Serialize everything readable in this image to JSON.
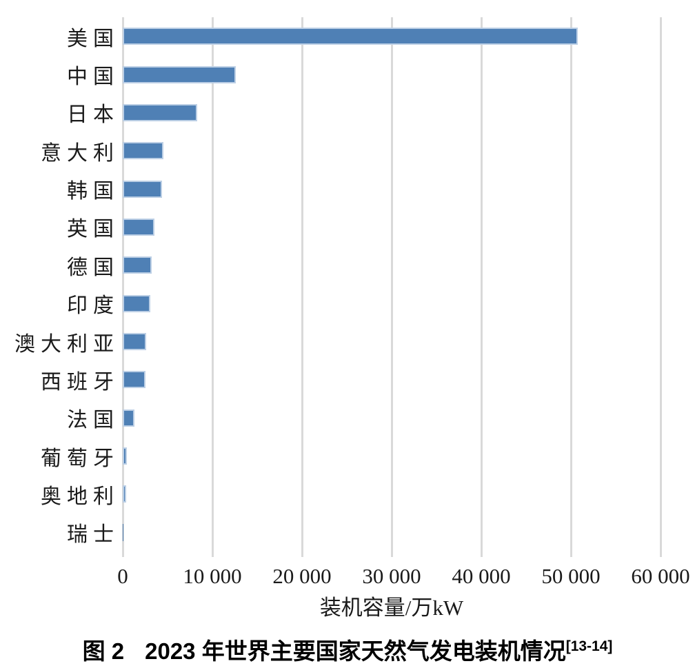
{
  "chart_data": {
    "type": "bar",
    "orientation": "horizontal",
    "categories": [
      "美国",
      "中国",
      "日本",
      "意大利",
      "韩国",
      "英国",
      "德国",
      "印度",
      "澳大利亚",
      "西班牙",
      "法国",
      "葡萄牙",
      "奥地利",
      "瑞士"
    ],
    "values": [
      50800,
      12600,
      8300,
      4500,
      4400,
      3500,
      3200,
      3100,
      2600,
      2500,
      1300,
      450,
      400,
      50
    ],
    "unit": "万kW",
    "xlabel": "装机容量/万kW",
    "xlim": [
      0,
      60000
    ],
    "xticks": [
      {
        "value": 0,
        "label": "0"
      },
      {
        "value": 10000,
        "label": "10 000"
      },
      {
        "value": 20000,
        "label": "20 000"
      },
      {
        "value": 30000,
        "label": "30 000"
      },
      {
        "value": 40000,
        "label": "40 000"
      },
      {
        "value": 50000,
        "label": "50 000"
      },
      {
        "value": 60000,
        "label": "60 000"
      }
    ],
    "grid": "vertical",
    "legend": "none",
    "title": "图 2  2023 年世界主要国家天然气发电装机情况[13-14]"
  },
  "caption": {
    "fig_label": "图 2",
    "text": "2023 年世界主要国家天然气发电装机情况",
    "reference": "[13-14]"
  },
  "colors": {
    "bar_fill": "#4f80b5",
    "bar_halo": "#bccfe5",
    "gridline": "#d9d9d9",
    "text": "#1a1a1a"
  }
}
